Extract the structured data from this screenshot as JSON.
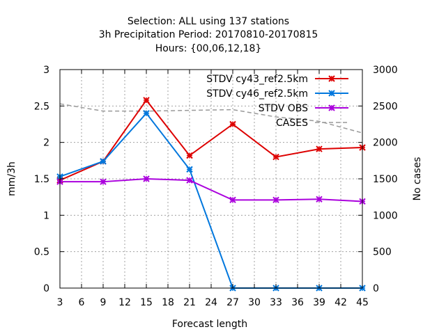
{
  "chart_data": {
    "type": "line",
    "title_lines": [
      "Selection: ALL using   137 stations",
      "3h Precipitation    Period: 20170810-20170815",
      "Hours: {00,06,12,18}"
    ],
    "xlabel": "Forecast length",
    "ylabel": "mm/3h",
    "y2label": "No cases",
    "xlim": [
      3,
      45
    ],
    "ylim": [
      0,
      3
    ],
    "y2lim": [
      0,
      3000
    ],
    "xticks": [
      3,
      6,
      9,
      12,
      15,
      18,
      21,
      24,
      27,
      30,
      33,
      36,
      39,
      42,
      45
    ],
    "yticks": [
      0,
      0.5,
      1,
      1.5,
      2,
      2.5,
      3
    ],
    "yticklabels": [
      "0",
      "0.5",
      "1",
      "1.5",
      "2",
      "2.5",
      "3"
    ],
    "y2ticks": [
      0,
      500,
      1000,
      1500,
      2000,
      2500,
      3000
    ],
    "grid": true,
    "legend_position": "top-right",
    "x": [
      3,
      9,
      15,
      21,
      27,
      33,
      39,
      45
    ],
    "series": [
      {
        "name": "STDV cy43_ref2.5km",
        "color": "#dd0000",
        "axis": "left",
        "marker": "x",
        "style": "solid",
        "values": [
          1.48,
          1.74,
          2.58,
          1.82,
          2.25,
          1.8,
          1.91,
          1.93
        ]
      },
      {
        "name": "STDV cy46_ref2.5km",
        "color": "#0077dd",
        "axis": "left",
        "marker": "x",
        "style": "solid",
        "values": [
          1.53,
          1.74,
          2.4,
          1.63,
          0.0,
          0.0,
          0.0,
          0.0
        ]
      },
      {
        "name": "STDV OBS",
        "color": "#aa00dd",
        "axis": "left",
        "marker": "x",
        "style": "solid",
        "values": [
          1.46,
          1.46,
          1.5,
          1.48,
          1.21,
          1.21,
          1.22,
          1.19
        ]
      },
      {
        "name": "CASES",
        "color": "#999999",
        "axis": "right",
        "marker": "none",
        "style": "dashed",
        "values": [
          2530,
          2430,
          2430,
          2440,
          2450,
          2350,
          2290,
          2130
        ]
      }
    ]
  }
}
